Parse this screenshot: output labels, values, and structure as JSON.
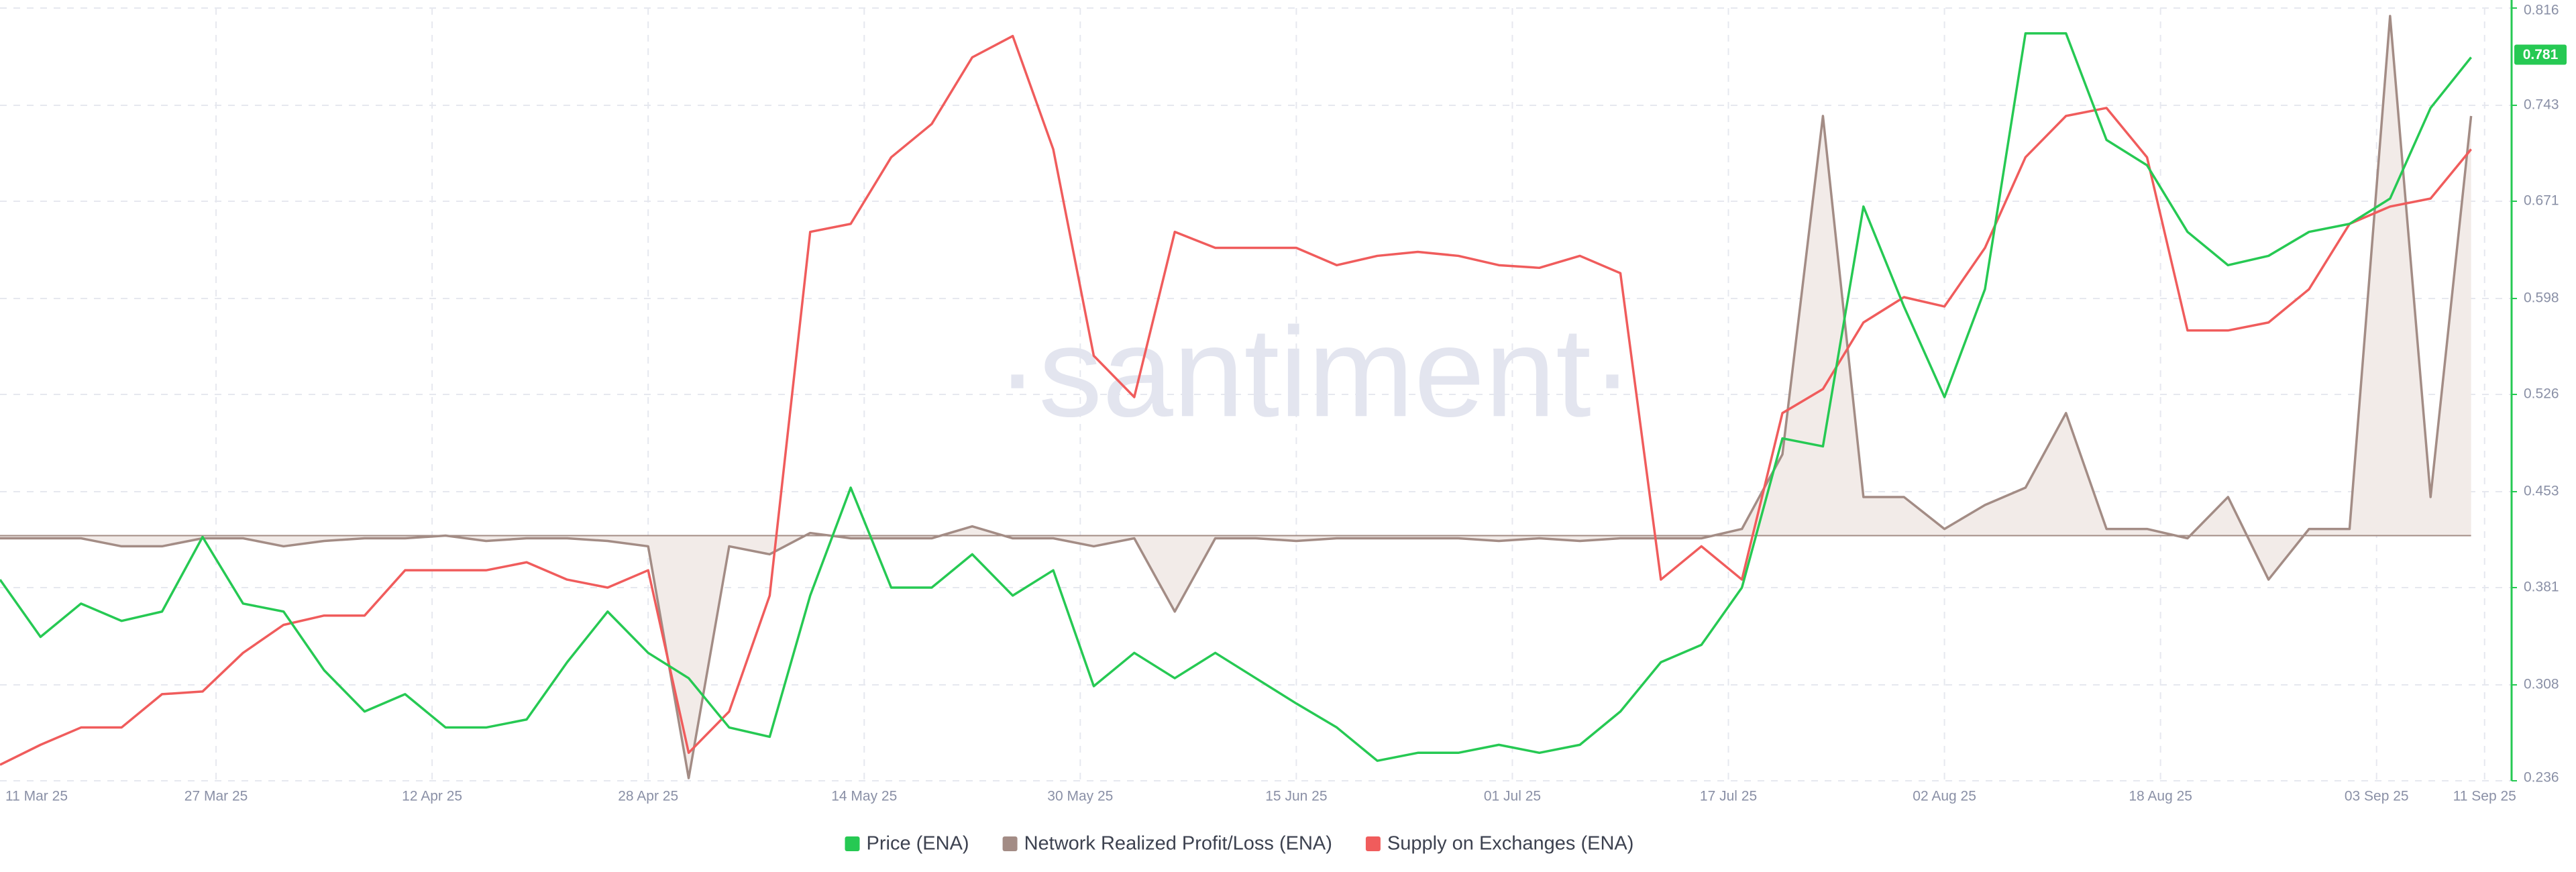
{
  "chart_data": {
    "type": "line",
    "watermark": "·santiment·",
    "legend": "bottom",
    "grid": true,
    "x": [
      "2025-03-11",
      "2025-03-14",
      "2025-03-17",
      "2025-03-20",
      "2025-03-23",
      "2025-03-26",
      "2025-03-29",
      "2025-04-01",
      "2025-04-04",
      "2025-04-07",
      "2025-04-10",
      "2025-04-13",
      "2025-04-16",
      "2025-04-19",
      "2025-04-22",
      "2025-04-25",
      "2025-04-28",
      "2025-05-01",
      "2025-05-04",
      "2025-05-07",
      "2025-05-10",
      "2025-05-13",
      "2025-05-16",
      "2025-05-19",
      "2025-05-22",
      "2025-05-25",
      "2025-05-28",
      "2025-05-31",
      "2025-06-03",
      "2025-06-06",
      "2025-06-09",
      "2025-06-12",
      "2025-06-15",
      "2025-06-18",
      "2025-06-21",
      "2025-06-24",
      "2025-06-27",
      "2025-06-30",
      "2025-07-03",
      "2025-07-06",
      "2025-07-09",
      "2025-07-12",
      "2025-07-15",
      "2025-07-18",
      "2025-07-21",
      "2025-07-24",
      "2025-07-27",
      "2025-07-30",
      "2025-08-02",
      "2025-08-05",
      "2025-08-08",
      "2025-08-11",
      "2025-08-14",
      "2025-08-17",
      "2025-08-20",
      "2025-08-23",
      "2025-08-26",
      "2025-08-29",
      "2025-09-01",
      "2025-09-04",
      "2025-09-07",
      "2025-09-10"
    ],
    "xlim": [
      "2025-03-11",
      "2025-09-13"
    ],
    "xticks": [
      {
        "value": "2025-03-11",
        "label": "11 Mar 25"
      },
      {
        "value": "2025-03-27",
        "label": "27 Mar 25"
      },
      {
        "value": "2025-04-12",
        "label": "12 Apr 25"
      },
      {
        "value": "2025-04-28",
        "label": "28 Apr 25"
      },
      {
        "value": "2025-05-14",
        "label": "14 May 25"
      },
      {
        "value": "2025-05-30",
        "label": "30 May 25"
      },
      {
        "value": "2025-06-15",
        "label": "15 Jun 25"
      },
      {
        "value": "2025-07-01",
        "label": "01 Jul 25"
      },
      {
        "value": "2025-07-17",
        "label": "17 Jul 25"
      },
      {
        "value": "2025-08-02",
        "label": "02 Aug 25"
      },
      {
        "value": "2025-08-18",
        "label": "18 Aug 25"
      },
      {
        "value": "2025-09-03",
        "label": "03 Sep 25"
      },
      {
        "value": "2025-09-11",
        "label": "11 Sep 25"
      }
    ],
    "ylim": [
      0.236,
      0.816
    ],
    "yticks": [
      0.236,
      0.308,
      0.381,
      0.453,
      0.526,
      0.598,
      0.671,
      0.743,
      0.816
    ],
    "price_label": 0.781,
    "series": [
      {
        "name": "Price (ENA)",
        "color": "#26c953",
        "values": [
          0.387,
          0.344,
          0.369,
          0.356,
          0.363,
          0.419,
          0.369,
          0.363,
          0.319,
          0.288,
          0.301,
          0.276,
          0.276,
          0.282,
          0.325,
          0.363,
          0.332,
          0.313,
          0.276,
          0.269,
          0.375,
          0.456,
          0.381,
          0.381,
          0.406,
          0.375,
          0.394,
          0.307,
          0.332,
          0.313,
          0.332,
          0.313,
          0.294,
          0.276,
          0.251,
          0.257,
          0.257,
          0.263,
          0.257,
          0.263,
          0.288,
          0.325,
          0.338,
          0.381,
          0.493,
          0.487,
          0.667,
          0.592,
          0.524,
          0.605,
          0.797,
          0.797,
          0.717,
          0.698,
          0.648,
          0.623,
          0.63,
          0.648,
          0.654,
          0.673,
          0.741,
          0.779
        ]
      },
      {
        "name": "Network Realized Profit/Loss (ENA)",
        "color": "#a38c85",
        "fill_color": "#f2ebe8",
        "fill_to": 0.42,
        "values": [
          0.418,
          0.418,
          0.418,
          0.412,
          0.412,
          0.418,
          0.418,
          0.412,
          0.416,
          0.418,
          0.418,
          0.42,
          0.416,
          0.418,
          0.418,
          0.416,
          0.412,
          0.238,
          0.412,
          0.406,
          0.422,
          0.418,
          0.418,
          0.418,
          0.427,
          0.418,
          0.418,
          0.412,
          0.418,
          0.363,
          0.418,
          0.418,
          0.416,
          0.418,
          0.418,
          0.418,
          0.418,
          0.416,
          0.418,
          0.416,
          0.418,
          0.418,
          0.418,
          0.425,
          0.481,
          0.735,
          0.449,
          0.449,
          0.425,
          0.443,
          0.456,
          0.512,
          0.425,
          0.425,
          0.418,
          0.449,
          0.387,
          0.425,
          0.425,
          0.81,
          0.449,
          0.735
        ]
      },
      {
        "name": "Supply on Exchanges (ENA)",
        "color": "#f05c5c",
        "values": [
          0.248,
          0.263,
          0.276,
          0.276,
          0.301,
          0.303,
          0.332,
          0.353,
          0.36,
          0.36,
          0.394,
          0.394,
          0.394,
          0.4,
          0.387,
          0.381,
          0.394,
          0.257,
          0.288,
          0.375,
          0.648,
          0.654,
          0.704,
          0.729,
          0.779,
          0.795,
          0.71,
          0.555,
          0.524,
          0.648,
          0.636,
          0.636,
          0.636,
          0.623,
          0.63,
          0.633,
          0.63,
          0.623,
          0.621,
          0.63,
          0.617,
          0.387,
          0.412,
          0.387,
          0.512,
          0.53,
          0.58,
          0.599,
          0.592,
          0.636,
          0.704,
          0.735,
          0.741,
          0.704,
          0.574,
          0.574,
          0.58,
          0.605,
          0.654,
          0.667,
          0.673,
          0.71
        ]
      }
    ]
  }
}
